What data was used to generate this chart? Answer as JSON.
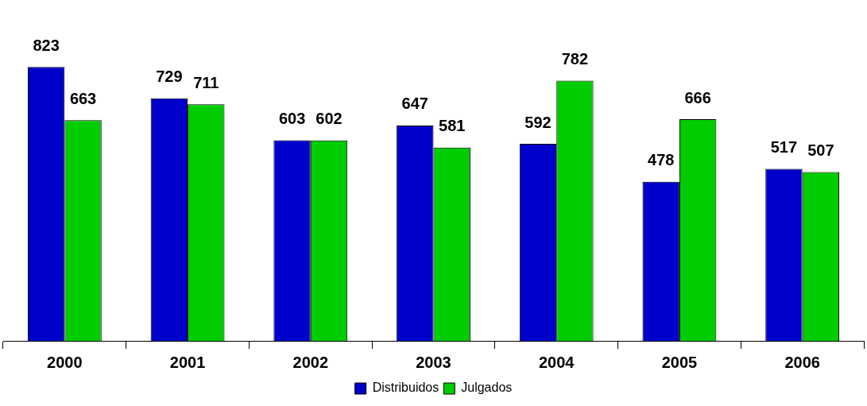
{
  "chart_data": {
    "type": "bar",
    "categories": [
      "2000",
      "2001",
      "2002",
      "2003",
      "2004",
      "2005",
      "2006"
    ],
    "series": [
      {
        "name": "Distribuidos",
        "color": "#0000cc",
        "values": [
          823,
          729,
          603,
          647,
          592,
          478,
          517
        ]
      },
      {
        "name": "Julgados",
        "color": "#00cc00",
        "values": [
          663,
          711,
          602,
          581,
          782,
          666,
          507
        ]
      }
    ],
    "data_labels": true,
    "legend": "bottom",
    "grid": false
  }
}
